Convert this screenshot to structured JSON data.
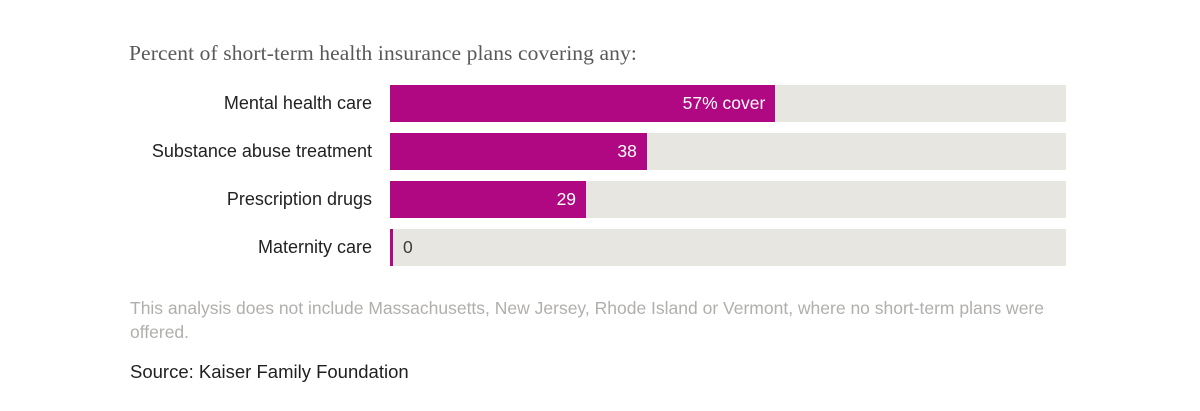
{
  "page": {
    "background": "#ffffff"
  },
  "chart_data": {
    "type": "bar",
    "orientation": "horizontal",
    "title": "Percent of short-term health insurance plans covering any:",
    "categories": [
      "Mental health care",
      "Substance abuse treatment",
      "Prescription drugs",
      "Maternity care"
    ],
    "values": [
      57,
      38,
      29,
      0
    ],
    "value_labels": [
      "57% cover",
      "38",
      "29",
      "0"
    ],
    "xlim": [
      0,
      100
    ],
    "grid": false,
    "legend": false,
    "colors": {
      "bar": "#AF0882",
      "track": "#E8E6E1",
      "value_text": "#FFFFFF",
      "zero_value_text": "#3C3C3C"
    },
    "note_lines": [
      "This analysis does not include Massachusetts, New Jersey, Rhode Island or Vermont, where no short-term plans were",
      "offered."
    ],
    "source": "Source: Kaiser Family Foundation"
  }
}
